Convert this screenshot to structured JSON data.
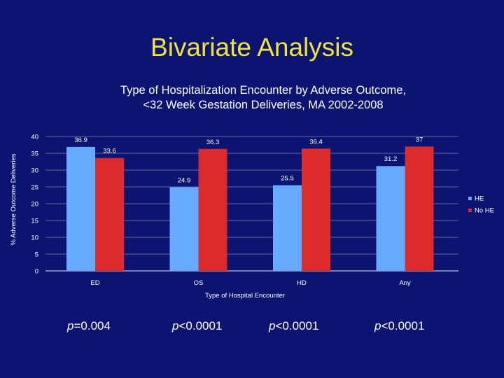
{
  "slide": {
    "title": "Bivariate Analysis"
  },
  "chart_data": {
    "type": "bar",
    "title": "Type of Hospitalization Encounter by Adverse Outcome,",
    "subtitle": "<32 Week Gestation Deliveries, MA 2002-2008",
    "xlabel": "Type of Hospital Encounter",
    "ylabel": "% Adverse Outcome Deliveries",
    "categories": [
      "ED",
      "OS",
      "HD",
      "Any"
    ],
    "series": [
      {
        "name": "HE",
        "values": [
          36.9,
          24.9,
          25.5,
          31.2
        ],
        "color": "#66aaff"
      },
      {
        "name": "No HE",
        "values": [
          33.6,
          36.3,
          36.4,
          37
        ],
        "color": "#dd2b2b"
      }
    ],
    "ylim": [
      0,
      40
    ],
    "yticks": [
      0,
      5,
      10,
      15,
      20,
      25,
      30,
      35,
      40
    ],
    "grid": true,
    "legend": "right",
    "data_labels": true
  },
  "pvalues": [
    {
      "prefix": "p",
      "text": "=0.004"
    },
    {
      "prefix": "p",
      "text": "<0.0001"
    },
    {
      "prefix": "p",
      "text": "<0.0001"
    },
    {
      "prefix": "p",
      "text": "<0.0001"
    }
  ]
}
